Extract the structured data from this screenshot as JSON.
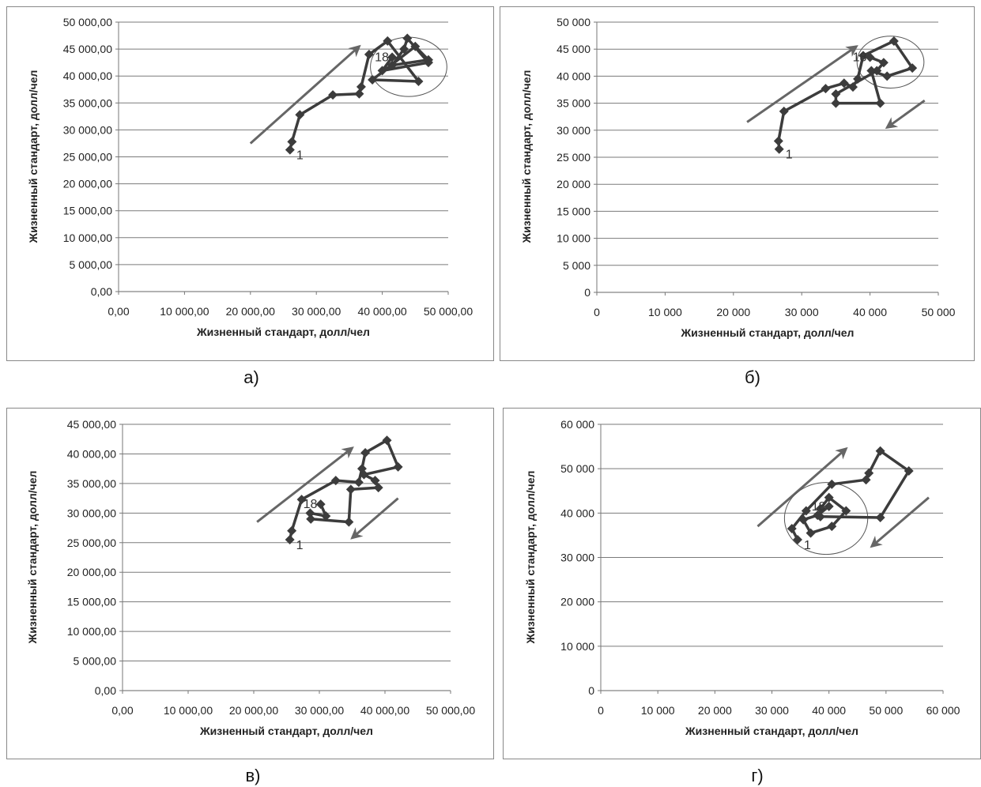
{
  "captions": [
    "а)",
    "б)",
    "в)",
    "г)"
  ],
  "chart_data": [
    {
      "type": "line",
      "xlabel": "Жизненный стандарт, долл/чел",
      "ylabel": "Жизненный стандарт, долл/чел",
      "xlim": [
        0,
        50000
      ],
      "ylim": [
        0,
        50000
      ],
      "x_ticks": [
        "0,00",
        "10 000,00",
        "20 000,00",
        "30 000,00",
        "40 000,00",
        "50 000,00"
      ],
      "y_ticks": [
        "0,00",
        "5 000,00",
        "10 000,00",
        "15 000,00",
        "20 000,00",
        "25 000,00",
        "30 000,00",
        "35 000,00",
        "40 000,00",
        "45 000,00",
        "50 000,00"
      ],
      "grid": "horizontal",
      "start_label": "1",
      "end_label": "18",
      "points": [
        [
          26000,
          26300
        ],
        [
          26300,
          27800
        ],
        [
          27500,
          32800
        ],
        [
          32500,
          36500
        ],
        [
          36500,
          36700
        ],
        [
          36800,
          38000
        ],
        [
          38000,
          44000
        ],
        [
          40800,
          46500
        ],
        [
          45500,
          39000
        ],
        [
          38500,
          39300
        ],
        [
          45000,
          45500
        ],
        [
          47000,
          43000
        ],
        [
          41500,
          42000
        ],
        [
          43300,
          45000
        ],
        [
          43800,
          47000
        ],
        [
          47000,
          42500
        ],
        [
          40000,
          41000
        ],
        [
          41500,
          43500
        ]
      ],
      "arrows": [
        {
          "from": [
            20000,
            27500
          ],
          "to": [
            36500,
            45500
          ]
        }
      ],
      "ellipses": [
        {
          "cx": 44000,
          "cy": 41700,
          "rx": 5800,
          "ry": 5500
        }
      ]
    },
    {
      "type": "line",
      "xlabel": "Жизненный стандарт, долл/чел",
      "ylabel": "Жизненный стандарт, долл/чел",
      "xlim": [
        0,
        50000
      ],
      "ylim": [
        0,
        50000
      ],
      "x_ticks": [
        "0",
        "10 000",
        "20 000",
        "30 000",
        "40 000",
        "50 000"
      ],
      "y_ticks": [
        "0",
        "5 000",
        "10 000",
        "15 000",
        "20 000",
        "25 000",
        "30 000",
        "35 000",
        "40 000",
        "45 000",
        "50 000"
      ],
      "grid": "horizontal",
      "start_label": "1",
      "end_label": "18",
      "points": [
        [
          26700,
          26500
        ],
        [
          26600,
          28000
        ],
        [
          27400,
          33500
        ],
        [
          33500,
          37700
        ],
        [
          36200,
          38700
        ],
        [
          37500,
          38000
        ],
        [
          38200,
          39500
        ],
        [
          39000,
          43800
        ],
        [
          43500,
          46500
        ],
        [
          46200,
          41500
        ],
        [
          42500,
          40000
        ],
        [
          40200,
          41000
        ],
        [
          41500,
          35000
        ],
        [
          35000,
          35000
        ],
        [
          35000,
          36700
        ],
        [
          41000,
          41000
        ],
        [
          42000,
          42500
        ],
        [
          40000,
          43500
        ]
      ],
      "arrows": [
        {
          "from": [
            22000,
            31500
          ],
          "to": [
            38000,
            45500
          ]
        },
        {
          "from": [
            48000,
            35500
          ],
          "to": [
            42500,
            30500
          ]
        }
      ],
      "ellipses": [
        {
          "cx": 43000,
          "cy": 42600,
          "rx": 4900,
          "ry": 4800
        }
      ]
    },
    {
      "type": "line",
      "xlabel": "Жизненный стандарт, долл/чел",
      "ylabel": "Жизненный стандарт, долл/чел",
      "xlim": [
        0,
        50000
      ],
      "ylim": [
        0,
        45000
      ],
      "x_ticks": [
        "0,00",
        "10 000,00",
        "20 000,00",
        "30 000,00",
        "40 000,00",
        "50 000,00"
      ],
      "y_ticks": [
        "0,00",
        "5 000,00",
        "10 000,00",
        "15 000,00",
        "20 000,00",
        "25 000,00",
        "30 000,00",
        "35 000,00",
        "40 000,00",
        "45 000,00"
      ],
      "grid": "horizontal",
      "start_label": "1",
      "end_label": "18",
      "points": [
        [
          25500,
          25500
        ],
        [
          25800,
          27000
        ],
        [
          27300,
          32300
        ],
        [
          32500,
          35500
        ],
        [
          36000,
          35200
        ],
        [
          36500,
          37500
        ],
        [
          37000,
          40200
        ],
        [
          40300,
          42300
        ],
        [
          42000,
          37800
        ],
        [
          36800,
          36500
        ],
        [
          38500,
          35500
        ],
        [
          39000,
          34300
        ],
        [
          34800,
          34000
        ],
        [
          34500,
          28500
        ],
        [
          28700,
          29000
        ],
        [
          28600,
          30000
        ],
        [
          31000,
          29500
        ],
        [
          30200,
          31500
        ]
      ],
      "arrows": [
        {
          "from": [
            20500,
            28500
          ],
          "to": [
            35000,
            41000
          ]
        },
        {
          "from": [
            42000,
            32500
          ],
          "to": [
            35000,
            25800
          ]
        }
      ],
      "ellipses": []
    },
    {
      "type": "line",
      "xlabel": "Жизненный стандарт, долл/чел",
      "ylabel": "Жизненный стандарт, долл/чел",
      "xlim": [
        0,
        60000
      ],
      "ylim": [
        0,
        60000
      ],
      "x_ticks": [
        "0",
        "10 000",
        "20 000",
        "30 000",
        "40 000",
        "50 000",
        "60 000"
      ],
      "y_ticks": [
        "0",
        "10 000",
        "20 000",
        "30 000",
        "40 000",
        "50 000",
        "60 000"
      ],
      "grid": "horizontal",
      "start_label": "1",
      "end_label": "18",
      "points": [
        [
          34500,
          34000
        ],
        [
          33500,
          36500
        ],
        [
          36000,
          40500
        ],
        [
          40500,
          46500
        ],
        [
          46500,
          47500
        ],
        [
          47000,
          49000
        ],
        [
          49000,
          54000
        ],
        [
          54000,
          49500
        ],
        [
          49000,
          39000
        ],
        [
          38500,
          39200
        ],
        [
          38500,
          41000
        ],
        [
          40000,
          43500
        ],
        [
          43000,
          40500
        ],
        [
          40500,
          37000
        ],
        [
          36800,
          35500
        ],
        [
          35500,
          38500
        ],
        [
          38000,
          39500
        ],
        [
          40000,
          41500
        ]
      ],
      "arrows": [
        {
          "from": [
            27500,
            37000
          ],
          "to": [
            43000,
            54500
          ]
        },
        {
          "from": [
            57500,
            43500
          ],
          "to": [
            47500,
            32500
          ]
        }
      ],
      "ellipses": [
        {
          "cx": 39500,
          "cy": 38800,
          "rx": 7300,
          "ry": 8100
        }
      ]
    }
  ]
}
